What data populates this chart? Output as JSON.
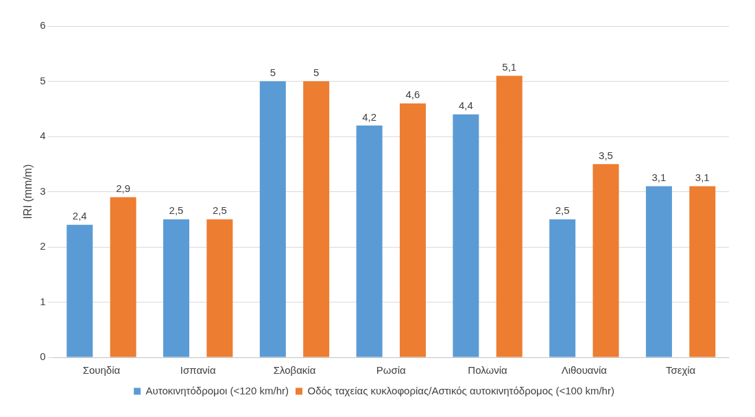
{
  "chart_data": {
    "type": "bar",
    "ylabel": "IRI (mm/m)",
    "categories": [
      "Σουηδία",
      "Ισπανία",
      "Σλοβακία",
      "Ρωσία",
      "Πολωνία",
      "Λιθουανία",
      "Τσεχία"
    ],
    "series": [
      {
        "name": "Αυτοκινητόδρομοι (<120 km/hr)",
        "color": "#5b9bd5",
        "values": [
          2.4,
          2.5,
          5,
          4.2,
          4.4,
          2.5,
          3.1
        ],
        "value_labels": [
          "2,4",
          "2,5",
          "5",
          "4,2",
          "4,4",
          "2,5",
          "3,1"
        ]
      },
      {
        "name": "Οδός ταχείας κυκλοφορίας/Αστικός αυτοκινητόδρομος (<100 km/hr)",
        "color": "#ed7d31",
        "values": [
          2.9,
          2.5,
          5,
          4.6,
          5.1,
          3.5,
          3.1
        ],
        "value_labels": [
          "2,9",
          "2,5",
          "5",
          "4,6",
          "5,1",
          "3,5",
          "3,1"
        ]
      }
    ],
    "ylim": [
      0,
      6
    ],
    "yticks": [
      0,
      1,
      2,
      3,
      4,
      5,
      6
    ],
    "grid": "y",
    "legend": "bottom"
  }
}
